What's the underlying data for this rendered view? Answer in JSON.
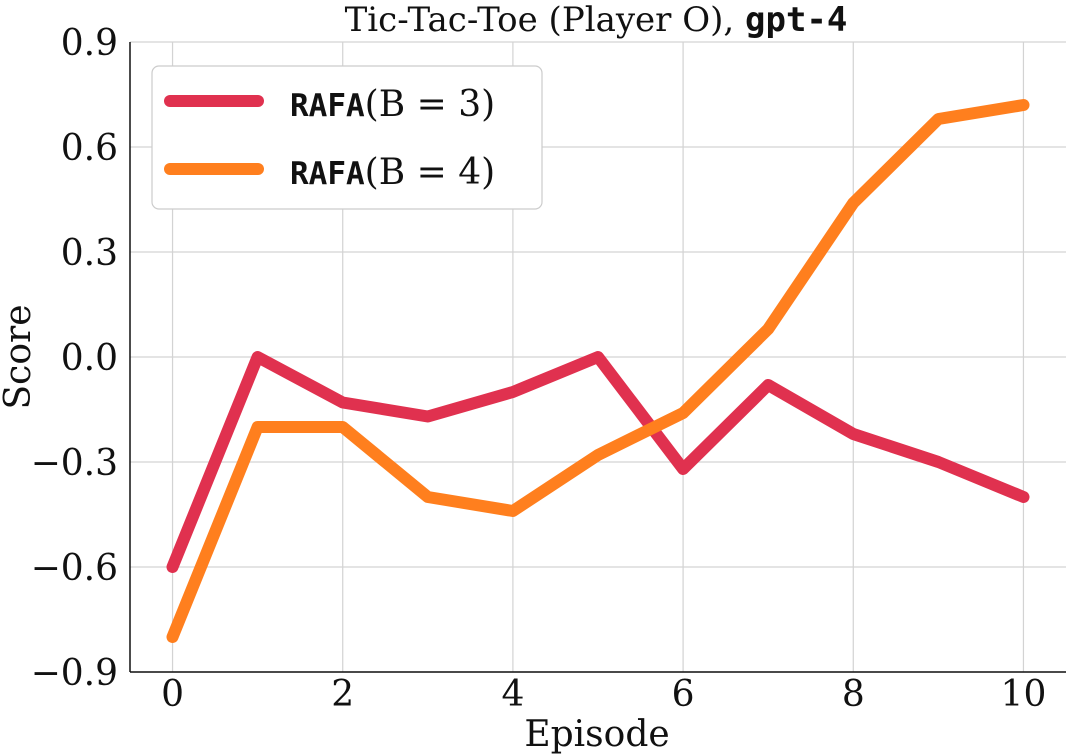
{
  "chart_data": {
    "type": "line",
    "title": {
      "main": "Tic-Tac-Toe (Player O), ",
      "model": "gpt-4"
    },
    "xlabel": "Episode",
    "ylabel": "Score",
    "xlim": [
      -0.5,
      10.5
    ],
    "ylim": [
      -0.9,
      0.9
    ],
    "xticks": [
      0,
      2,
      4,
      6,
      8,
      10
    ],
    "xtick_labels": [
      "0",
      "2",
      "4",
      "6",
      "8",
      "10"
    ],
    "yticks": [
      -0.9,
      -0.6,
      -0.3,
      0.0,
      0.3,
      0.6,
      0.9
    ],
    "ytick_labels": [
      "−0.9",
      "−0.6",
      "−0.3",
      "0.0",
      "0.3",
      "0.6",
      "0.9"
    ],
    "grid": true,
    "legend_position": "top-left",
    "x": [
      0,
      1,
      2,
      3,
      4,
      5,
      6,
      7,
      8,
      9,
      10
    ],
    "series": [
      {
        "legend_mono": "RAFA",
        "legend_math": "(B = 3)",
        "color": "#e0314f",
        "values": [
          -0.6,
          0.0,
          -0.13,
          -0.17,
          -0.1,
          0.0,
          -0.32,
          -0.08,
          -0.22,
          -0.3,
          -0.4
        ]
      },
      {
        "legend_mono": "RAFA",
        "legend_math": "(B = 4)",
        "color": "#ff7f1e",
        "values": [
          -0.8,
          -0.2,
          -0.2,
          -0.4,
          -0.44,
          -0.28,
          -0.16,
          0.08,
          0.44,
          0.68,
          0.72
        ]
      }
    ]
  }
}
